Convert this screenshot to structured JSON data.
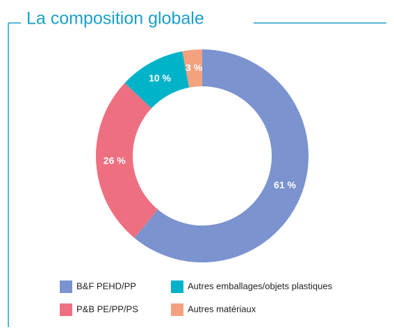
{
  "chart_data": {
    "type": "pie",
    "title": "La composition globale",
    "categories": [
      "B&F PEHD/PP",
      "P&B PE/PP/PS",
      "Autres emballages/objets plastiques",
      "Autres matériaux"
    ],
    "values": [
      61,
      26,
      10,
      3
    ],
    "value_labels": [
      "61 %",
      "26 %",
      "10 %",
      "3 %"
    ],
    "colors": [
      "#7b93cf",
      "#ee6f80",
      "#00b3c9",
      "#f4a17f"
    ],
    "donut": true,
    "legend": "bottom"
  }
}
